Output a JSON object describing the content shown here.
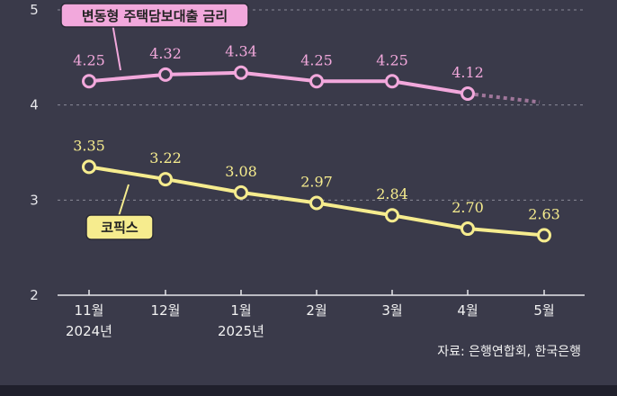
{
  "chart_data": {
    "type": "line",
    "categories": [
      "11월",
      "12월",
      "1월",
      "2월",
      "3월",
      "4월",
      "5월"
    ],
    "year_labels": [
      "2024년",
      "",
      "2025년",
      "",
      "",
      "",
      ""
    ],
    "ylim": [
      2,
      5
    ],
    "yticks": [
      "2",
      "3",
      "4",
      "5"
    ],
    "grid": true,
    "series": [
      {
        "name": "변동형 주택담보대출 금리",
        "values": [
          4.25,
          4.32,
          4.34,
          4.25,
          4.25,
          4.12,
          null
        ],
        "labels": [
          "4.25",
          "4.32",
          "4.34",
          "4.25",
          "4.25",
          "4.12",
          ""
        ],
        "color": "#f2a8dc",
        "projected_to": 4.03
      },
      {
        "name": "코픽스",
        "values": [
          3.35,
          3.22,
          3.08,
          2.97,
          2.84,
          2.7,
          2.63
        ],
        "labels": [
          "3.35",
          "3.22",
          "3.08",
          "2.97",
          "2.84",
          "2.70",
          "2.63"
        ],
        "color": "#f6ec8e"
      }
    ],
    "source": "자료: 은행연합회, 한국은행"
  },
  "colors": {
    "background": "#3a3a4a",
    "axis": "#e6e6ea",
    "grid": "#8a8a98"
  }
}
